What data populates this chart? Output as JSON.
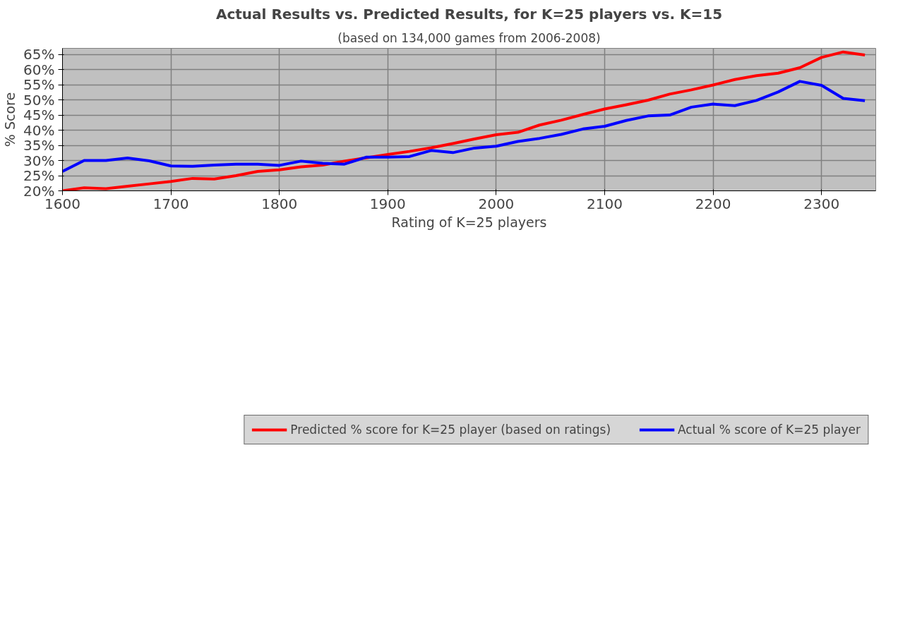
{
  "chart_data": {
    "type": "line",
    "title": "Actual Results vs. Predicted Results, for K=25 players vs. K=15",
    "subtitle": "(based on 134,000 games from 2006-2008)",
    "xlabel": "Rating of K=25 players",
    "ylabel": "% Score",
    "x": [
      1600,
      1620,
      1640,
      1660,
      1680,
      1700,
      1720,
      1740,
      1760,
      1780,
      1800,
      1820,
      1840,
      1860,
      1880,
      1900,
      1920,
      1940,
      1960,
      1980,
      2000,
      2020,
      2040,
      2060,
      2080,
      2100,
      2120,
      2140,
      2160,
      2180,
      2200,
      2220,
      2240,
      2260,
      2280,
      2300,
      2320,
      2340
    ],
    "series": [
      {
        "name": "Predicted % score for K=25 player (based on ratings)",
        "color": "#ff0000",
        "values": [
          20,
          21,
          20.7,
          21.5,
          22.3,
          23.1,
          24.1,
          23.9,
          25,
          26.4,
          26.9,
          27.9,
          28.5,
          29.8,
          30.9,
          32,
          33,
          34.2,
          35.6,
          37.1,
          38.5,
          39.3,
          41.7,
          43.3,
          45.2,
          47,
          48.4,
          49.9,
          51.9,
          53.3,
          54.9,
          56.7,
          58,
          58.8,
          60.6,
          64,
          65.8,
          64.8
        ]
      },
      {
        "name": "Actual % score of K=25 player",
        "color": "#0000ff",
        "values": [
          26.4,
          30,
          30,
          30.8,
          29.9,
          28.2,
          28.1,
          28.5,
          28.8,
          28.8,
          28.4,
          29.8,
          29.1,
          28.8,
          31.1,
          31.1,
          31.3,
          33.3,
          32.6,
          34.1,
          34.7,
          36.3,
          37.3,
          38.6,
          40.4,
          41.3,
          43.2,
          44.7,
          45,
          47.6,
          48.6,
          48.1,
          49.8,
          52.6,
          56.1,
          54.8,
          50.5,
          49.7
        ]
      }
    ],
    "xlim": [
      1600,
      2350
    ],
    "xticks": [
      1600,
      1700,
      1800,
      1900,
      2000,
      2100,
      2200,
      2300
    ],
    "ylim": [
      20,
      67
    ],
    "yticks": [
      {
        "value": 20,
        "label": "20%"
      },
      {
        "value": 25,
        "label": "25%"
      },
      {
        "value": 30,
        "label": "30%"
      },
      {
        "value": 35,
        "label": "35%"
      },
      {
        "value": 40,
        "label": "40%"
      },
      {
        "value": 45,
        "label": "45%"
      },
      {
        "value": 50,
        "label": "50%"
      },
      {
        "value": 55,
        "label": "55%"
      },
      {
        "value": 60,
        "label": "60%"
      },
      {
        "value": 65,
        "label": "65%"
      }
    ],
    "grid": true,
    "legend": "bottom",
    "marker": "none",
    "line_style": "solid"
  }
}
